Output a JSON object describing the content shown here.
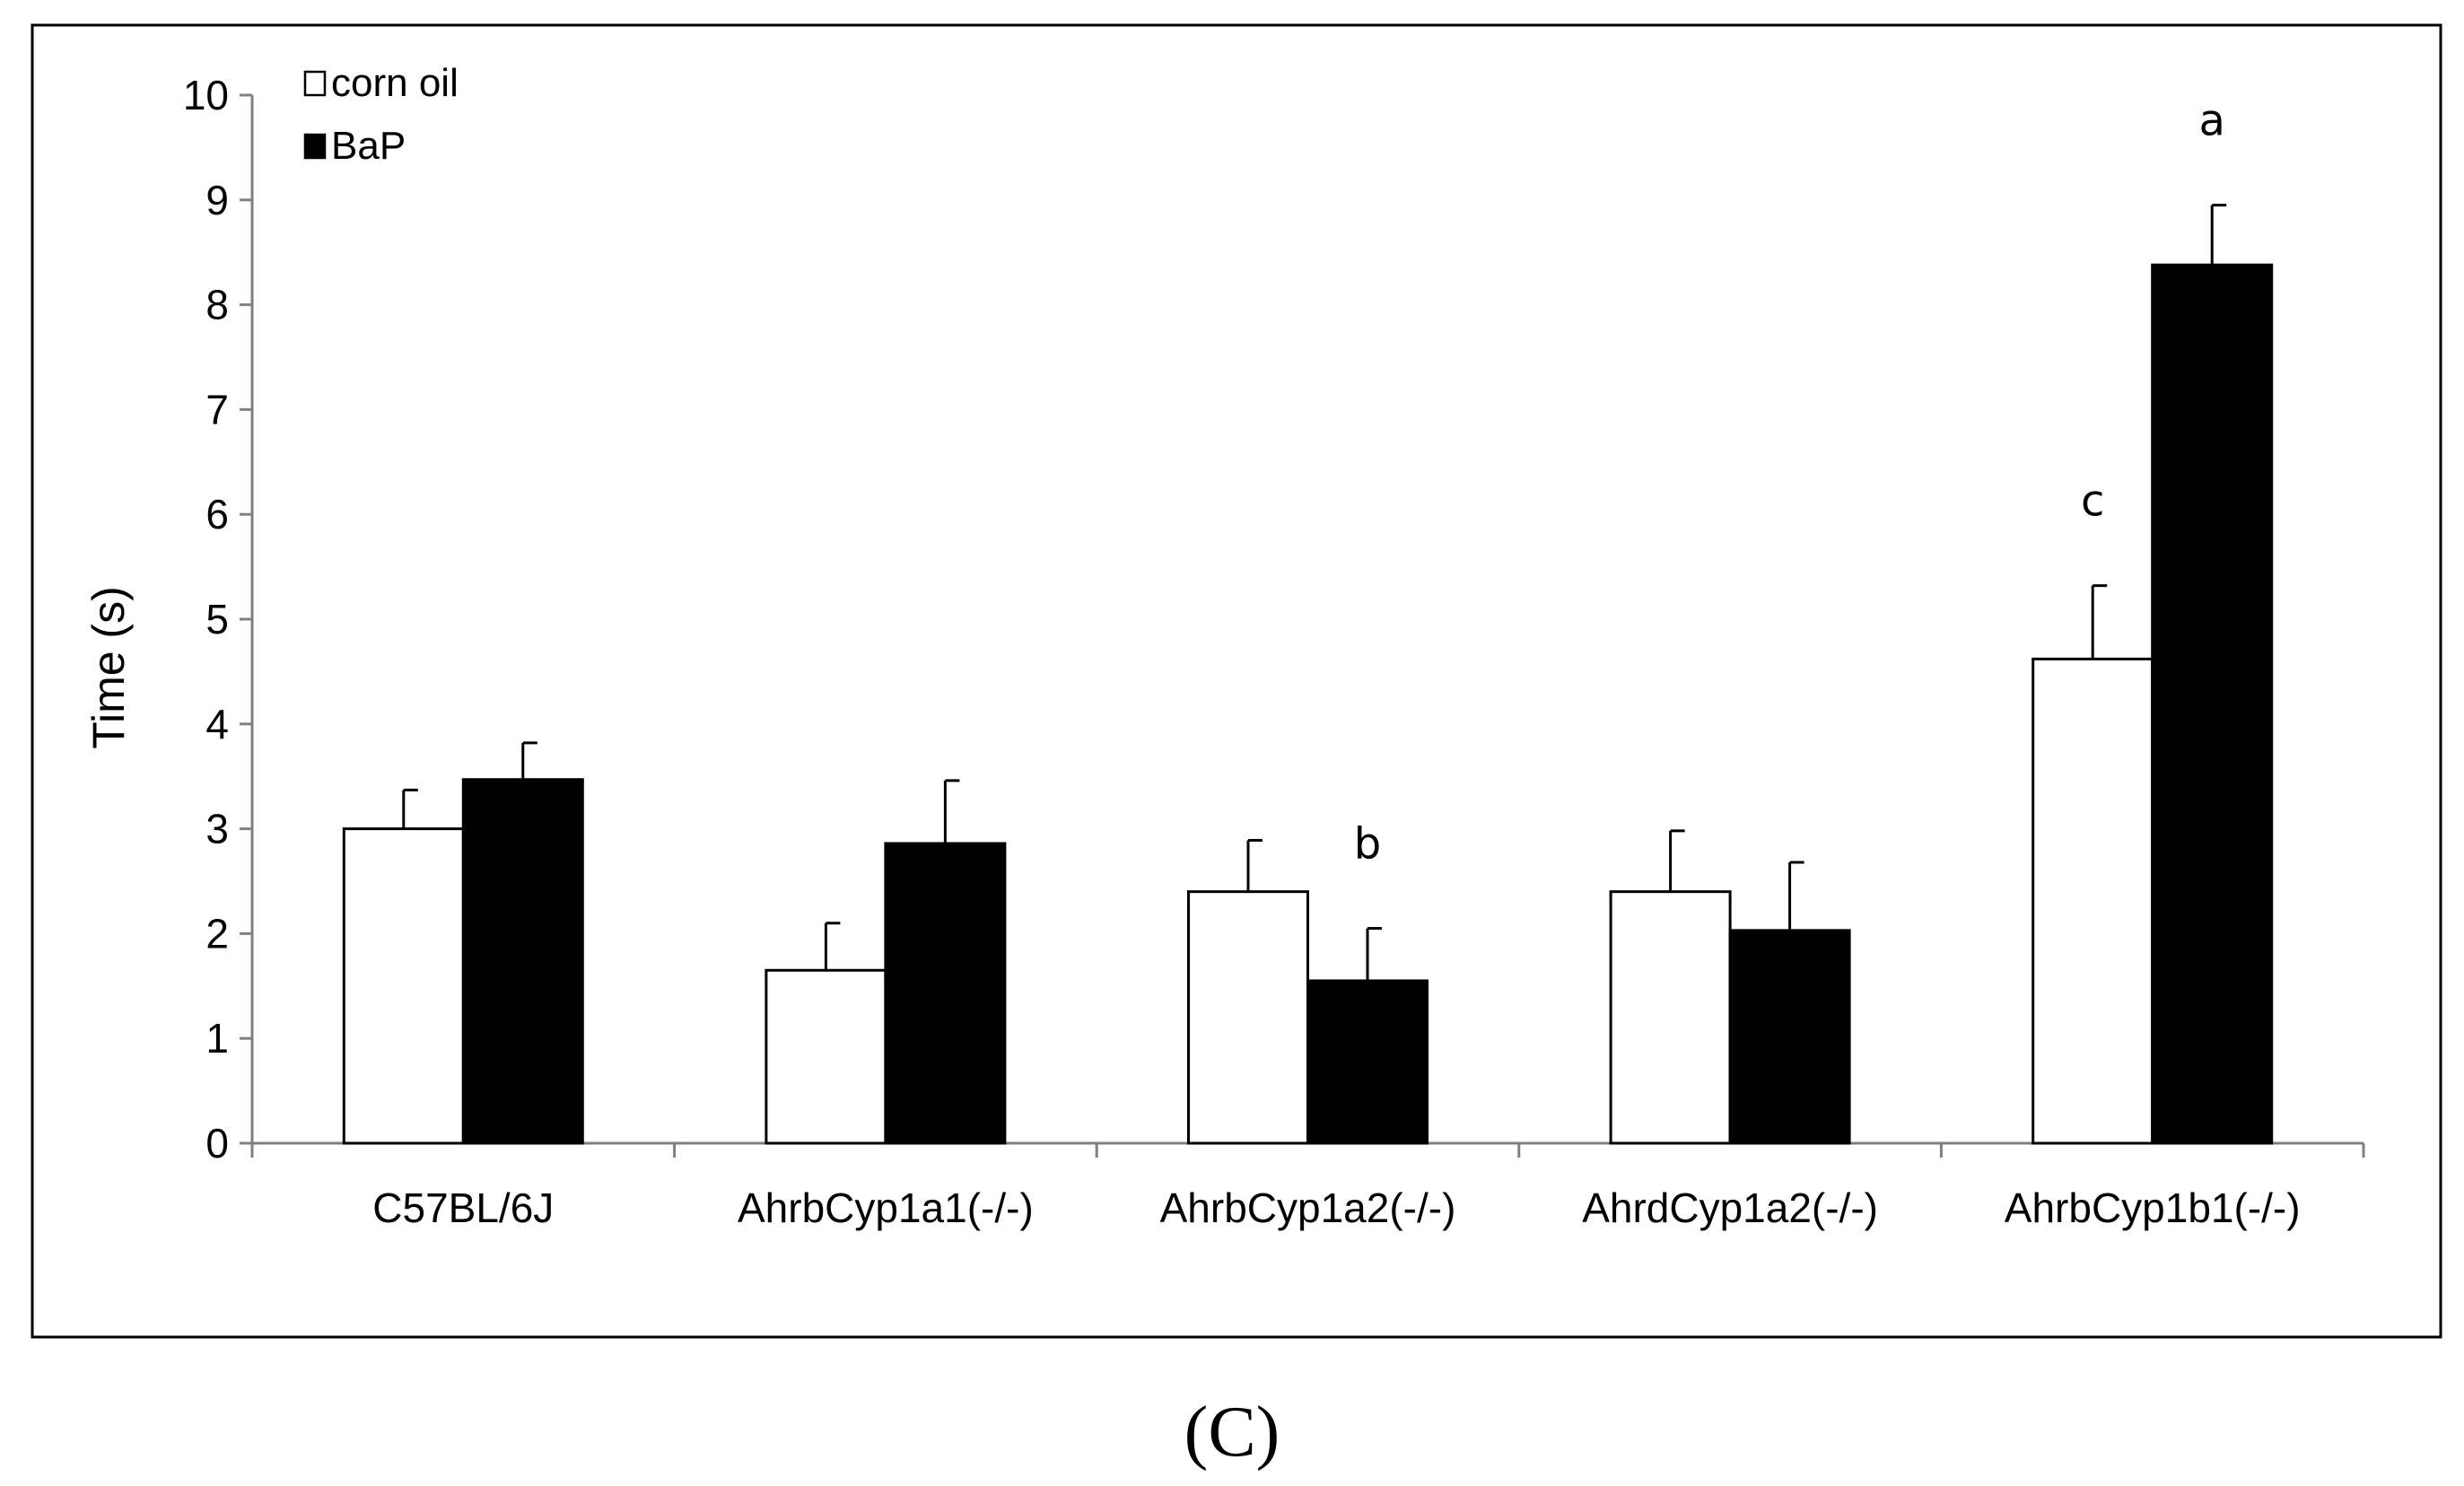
{
  "chart_data": {
    "type": "bar",
    "title": "",
    "xlabel": "",
    "ylabel": "Time (s)",
    "ylim": [
      0,
      10
    ],
    "yticks": [
      0,
      1,
      2,
      3,
      4,
      5,
      6,
      7,
      8,
      9,
      10
    ],
    "categories": [
      "C57BL/6J",
      "AhrbCyp1a1(-/-)",
      "AhrbCyp1a2(-/-)",
      "AhrdCyp1a2(-/-)",
      "AhrbCyp1b1(-/-)"
    ],
    "series": [
      {
        "name": "corn oil",
        "color": "#ffffff",
        "values": [
          3.0,
          1.65,
          2.4,
          2.4,
          4.62
        ],
        "errors": [
          0.37,
          0.45,
          0.49,
          0.58,
          0.7
        ],
        "annotations": [
          "",
          "",
          "",
          "",
          "c"
        ]
      },
      {
        "name": "BaP",
        "color": "#000000",
        "values": [
          3.47,
          2.86,
          1.55,
          2.03,
          8.38
        ],
        "errors": [
          0.35,
          0.6,
          0.5,
          0.65,
          0.57
        ],
        "annotations": [
          "",
          "",
          "b",
          "",
          "a"
        ]
      }
    ],
    "legend": {
      "position": "top-left",
      "items": [
        {
          "label": "corn oil",
          "swatch": "#ffffff"
        },
        {
          "label": "BaP",
          "swatch": "#000000"
        }
      ]
    },
    "grid": false
  },
  "figure": {
    "panel_label": "(C)"
  }
}
